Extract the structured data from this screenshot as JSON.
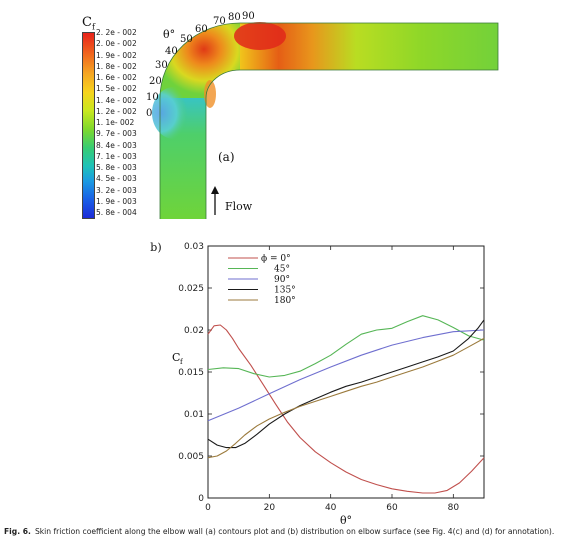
{
  "figure_a": {
    "colorbar_title": "C",
    "colorbar_subscript": "f",
    "colorbar_labels": [
      "2. 2e - 002",
      "2. 0e - 002",
      "1. 9e - 002",
      "1. 8e - 002",
      "1. 6e - 002",
      "1. 5e - 002",
      "1. 4e - 002",
      "1. 2e - 002",
      "1. 1e- 002",
      "9. 7e - 003",
      "8. 4e - 003",
      "7. 1e - 003",
      "5. 8e - 003",
      "4. 5e - 003",
      "3. 2e - 003",
      "1. 9e - 003",
      "5. 8e - 004"
    ],
    "theta_symbol": "θ°",
    "angle_labels": [
      "0",
      "10",
      "20",
      "30",
      "40",
      "50",
      "60",
      "70",
      "80",
      "90"
    ],
    "panel_label": "(a)",
    "flow_label": "Flow"
  },
  "chart_data": {
    "type": "line",
    "panel_label": "(b)",
    "xlabel": "θ°",
    "ylabel": "C",
    "ylabel_subscript": "f",
    "xlim": [
      0,
      90
    ],
    "ylim": [
      0,
      0.03
    ],
    "xticks": [
      "0",
      "20",
      "40",
      "60",
      "80"
    ],
    "yticks": [
      "0",
      "0.005",
      "0.01",
      "0.015",
      "0.02",
      "0.025",
      "0.03"
    ],
    "grid": false,
    "legend_position": "top-left",
    "series": [
      {
        "name": "ϕ = 0°",
        "color": "#c0504d",
        "x": [
          0,
          2,
          4,
          6,
          8,
          10,
          14,
          18,
          22,
          26,
          30,
          35,
          40,
          45,
          50,
          55,
          60,
          65,
          70,
          74,
          78,
          82,
          86,
          90
        ],
        "y": [
          0.0195,
          0.0205,
          0.0206,
          0.02,
          0.019,
          0.0178,
          0.0158,
          0.0135,
          0.0112,
          0.009,
          0.0072,
          0.0055,
          0.0042,
          0.0031,
          0.0022,
          0.0016,
          0.0011,
          0.0008,
          0.0006,
          0.0006,
          0.0009,
          0.0018,
          0.0032,
          0.0048
        ]
      },
      {
        "name": "45°",
        "color": "#56b656",
        "x": [
          0,
          5,
          10,
          15,
          20,
          25,
          30,
          35,
          40,
          45,
          50,
          55,
          60,
          65,
          70,
          75,
          80,
          85,
          90
        ],
        "y": [
          0.0153,
          0.0155,
          0.0154,
          0.0148,
          0.0144,
          0.0146,
          0.0151,
          0.016,
          0.017,
          0.0183,
          0.0195,
          0.02,
          0.0202,
          0.021,
          0.0217,
          0.0212,
          0.0203,
          0.0193,
          0.0188
        ]
      },
      {
        "name": "90°",
        "color": "#6f6fcf",
        "x": [
          0,
          10,
          20,
          30,
          40,
          50,
          60,
          70,
          80,
          90
        ],
        "y": [
          0.0092,
          0.0107,
          0.0124,
          0.0141,
          0.0156,
          0.017,
          0.0182,
          0.0191,
          0.0198,
          0.02
        ]
      },
      {
        "name": "135°",
        "color": "#1a1a1a",
        "x": [
          0,
          3,
          6,
          9,
          12,
          16,
          20,
          25,
          30,
          35,
          40,
          45,
          50,
          55,
          60,
          65,
          70,
          75,
          80,
          85,
          88,
          90
        ],
        "y": [
          0.007,
          0.0063,
          0.006,
          0.006,
          0.0065,
          0.0076,
          0.0088,
          0.01,
          0.011,
          0.0118,
          0.0126,
          0.0133,
          0.0138,
          0.0144,
          0.015,
          0.0156,
          0.0162,
          0.0168,
          0.0175,
          0.019,
          0.0202,
          0.0212
        ]
      },
      {
        "name": "180°",
        "color": "#9b7a3c",
        "x": [
          0,
          3,
          6,
          9,
          12,
          16,
          20,
          25,
          30,
          35,
          40,
          45,
          50,
          55,
          60,
          65,
          70,
          75,
          80,
          85,
          90
        ],
        "y": [
          0.0048,
          0.005,
          0.0056,
          0.0065,
          0.0075,
          0.0086,
          0.0094,
          0.0102,
          0.0109,
          0.0115,
          0.0121,
          0.0127,
          0.0133,
          0.0138,
          0.0144,
          0.015,
          0.0156,
          0.0163,
          0.017,
          0.018,
          0.019
        ]
      }
    ]
  },
  "caption": {
    "label": "Fig. 6.",
    "text": "Skin friction coefficient along the elbow wall (a) contours plot and (b) distribution on elbow surface (see Fig. 4(c) and (d) for annotation)."
  }
}
